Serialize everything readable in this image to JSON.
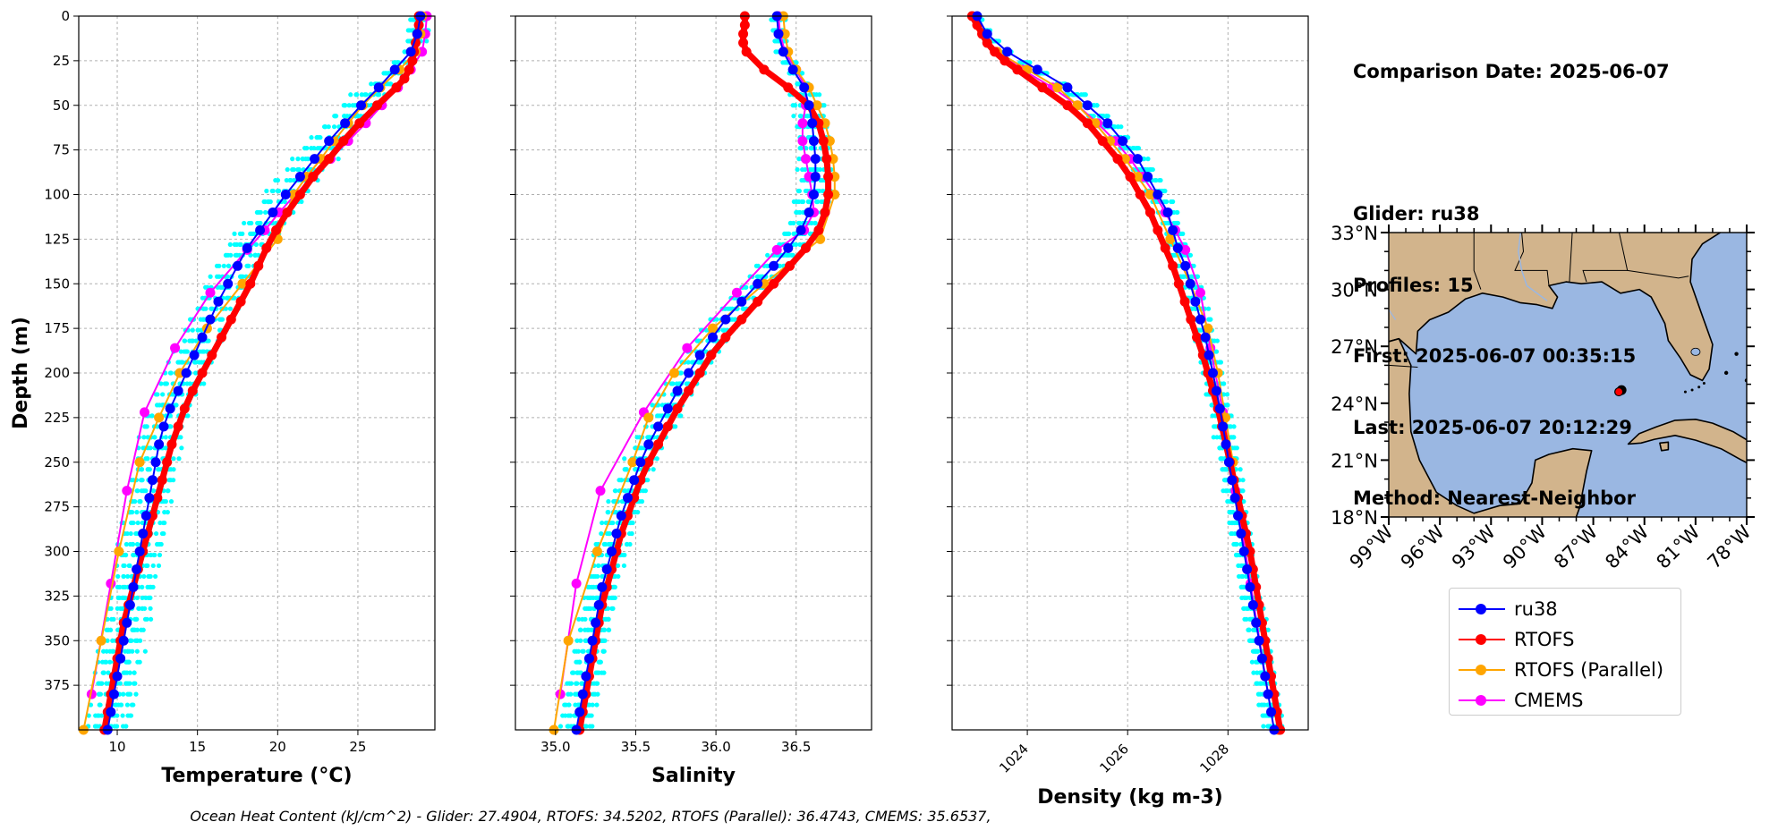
{
  "info": {
    "comparison_date": "Comparison Date: 2025-06-07",
    "glider": "Glider: ru38",
    "profiles": "Profiles: 15",
    "first": "First: 2025-06-07 00:35:15",
    "last": "Last: 2025-06-07 20:12:29",
    "method": "Method: Nearest-Neighbor"
  },
  "footer": "Ocean Heat Content (kJ/cm^2) - Glider: 27.4904,  RTOFS: 34.5202,  RTOFS (Parallel): 36.4743,  CMEMS: 35.6537,",
  "colors": {
    "ru38": "#0000ff",
    "RTOFS": "#ff0000",
    "RTOFS (Parallel)": "#ffa500",
    "CMEMS": "#ff00ff",
    "glider_profiles": "#00ffff",
    "grid": "#b0b0b0",
    "land": "#d2b48c",
    "ocean": "#9ab7e2"
  },
  "legend": [
    {
      "label": "ru38",
      "color": "#0000ff"
    },
    {
      "label": "RTOFS",
      "color": "#ff0000"
    },
    {
      "label": "RTOFS (Parallel)",
      "color": "#ffa500"
    },
    {
      "label": "CMEMS",
      "color": "#ff00ff"
    }
  ],
  "chart_data": [
    {
      "type": "line",
      "xlabel": "Temperature (°C)",
      "ylabel": "Depth (m)",
      "xlim": [
        7.6,
        29.8
      ],
      "ylim": [
        400,
        0
      ],
      "xticks": [
        10,
        15,
        20,
        25
      ],
      "yticks": [
        0,
        25,
        50,
        75,
        100,
        125,
        150,
        175,
        200,
        225,
        250,
        275,
        300,
        325,
        350,
        375
      ],
      "grid": true,
      "series": [
        {
          "name": "ru38",
          "color": "#0000ff",
          "depth": [
            0,
            10,
            20,
            30,
            40,
            50,
            60,
            70,
            80,
            90,
            100,
            110,
            120,
            130,
            140,
            150,
            160,
            170,
            180,
            190,
            200,
            210,
            220,
            230,
            240,
            250,
            260,
            270,
            280,
            290,
            300,
            310,
            320,
            330,
            340,
            350,
            360,
            370,
            380,
            390,
            400
          ],
          "values": [
            28.9,
            28.7,
            28.3,
            27.3,
            26.3,
            25.2,
            24.2,
            23.2,
            22.3,
            21.4,
            20.5,
            19.7,
            18.9,
            18.1,
            17.5,
            16.9,
            16.3,
            15.8,
            15.3,
            14.8,
            14.3,
            13.8,
            13.3,
            12.9,
            12.6,
            12.4,
            12.2,
            12.0,
            11.8,
            11.6,
            11.4,
            11.2,
            11.0,
            10.8,
            10.6,
            10.4,
            10.2,
            10.0,
            9.8,
            9.6,
            9.4
          ]
        },
        {
          "name": "RTOFS",
          "color": "#ff0000",
          "depth": [
            0,
            5,
            10,
            15,
            20,
            25,
            30,
            35,
            40,
            50,
            60,
            70,
            80,
            90,
            100,
            110,
            120,
            130,
            140,
            150,
            160,
            170,
            180,
            190,
            200,
            210,
            220,
            230,
            240,
            250,
            260,
            270,
            280,
            290,
            300,
            310,
            320,
            330,
            340,
            350,
            360,
            370,
            380,
            390,
            400
          ],
          "values": [
            28.8,
            28.8,
            28.7,
            28.6,
            28.5,
            28.4,
            28.2,
            27.9,
            27.4,
            26.2,
            25.1,
            24.1,
            23.2,
            22.2,
            21.4,
            20.6,
            19.9,
            19.3,
            18.8,
            18.3,
            17.7,
            17.1,
            16.5,
            15.9,
            15.3,
            14.7,
            14.2,
            13.8,
            13.4,
            13.1,
            12.8,
            12.5,
            12.2,
            11.9,
            11.6,
            11.3,
            11.0,
            10.7,
            10.4,
            10.2,
            10.0,
            9.8,
            9.6,
            9.4,
            9.2
          ]
        },
        {
          "name": "RTOFS (Parallel)",
          "color": "#ffa500",
          "depth": [
            0,
            10,
            20,
            30,
            40,
            50,
            60,
            70,
            80,
            90,
            100,
            125,
            150,
            175,
            200,
            225,
            250,
            300,
            350,
            400
          ],
          "values": [
            29.0,
            28.9,
            28.6,
            27.6,
            26.4,
            25.3,
            24.4,
            23.5,
            22.7,
            21.8,
            21.0,
            20.0,
            17.8,
            15.6,
            13.9,
            12.6,
            11.4,
            10.1,
            9.0,
            7.9
          ]
        },
        {
          "name": "CMEMS",
          "color": "#ff00ff",
          "depth": [
            0,
            10,
            20,
            30,
            40,
            50,
            60,
            70,
            80,
            90,
            100,
            110,
            120,
            131,
            155,
            186,
            222,
            266,
            318,
            380
          ],
          "values": [
            29.3,
            29.2,
            29.0,
            28.3,
            27.5,
            26.5,
            25.5,
            24.4,
            23.3,
            22.2,
            21.1,
            20.1,
            19.2,
            18.1,
            15.8,
            13.6,
            11.7,
            10.6,
            9.6,
            8.4
          ]
        }
      ]
    },
    {
      "type": "line",
      "xlabel": "Salinity",
      "xlim": [
        34.75,
        36.97
      ],
      "ylim": [
        400,
        0
      ],
      "xticks": [
        35.0,
        35.5,
        36.0,
        36.5
      ],
      "grid": true,
      "series": [
        {
          "name": "ru38",
          "color": "#0000ff",
          "depth": [
            0,
            10,
            20,
            30,
            40,
            50,
            60,
            70,
            80,
            90,
            100,
            110,
            120,
            130,
            140,
            150,
            160,
            170,
            180,
            190,
            200,
            210,
            220,
            230,
            240,
            250,
            260,
            270,
            280,
            290,
            300,
            310,
            320,
            330,
            340,
            350,
            360,
            370,
            380,
            390,
            400
          ],
          "values": [
            36.38,
            36.39,
            36.42,
            36.48,
            36.55,
            36.58,
            36.6,
            36.61,
            36.62,
            36.62,
            36.61,
            36.58,
            36.53,
            36.45,
            36.36,
            36.26,
            36.16,
            36.06,
            35.98,
            35.9,
            35.83,
            35.76,
            35.7,
            35.64,
            35.58,
            35.53,
            35.49,
            35.45,
            35.41,
            35.38,
            35.35,
            35.32,
            35.29,
            35.27,
            35.25,
            35.23,
            35.21,
            35.19,
            35.17,
            35.15,
            35.13
          ]
        },
        {
          "name": "RTOFS",
          "color": "#ff0000",
          "depth": [
            0,
            5,
            10,
            15,
            20,
            30,
            40,
            50,
            60,
            70,
            80,
            90,
            100,
            110,
            120,
            130,
            140,
            150,
            160,
            170,
            180,
            190,
            200,
            210,
            220,
            230,
            240,
            250,
            260,
            270,
            280,
            290,
            300,
            310,
            320,
            330,
            340,
            350,
            360,
            370,
            380,
            390,
            400
          ],
          "values": [
            36.18,
            36.18,
            36.17,
            36.17,
            36.19,
            36.3,
            36.45,
            36.58,
            36.64,
            36.67,
            36.69,
            36.7,
            36.7,
            36.68,
            36.64,
            36.56,
            36.46,
            36.36,
            36.26,
            36.16,
            36.06,
            35.97,
            35.9,
            35.83,
            35.76,
            35.7,
            35.64,
            35.58,
            35.53,
            35.49,
            35.45,
            35.41,
            35.38,
            35.35,
            35.32,
            35.29,
            35.27,
            35.25,
            35.23,
            35.21,
            35.19,
            35.17,
            35.15
          ]
        },
        {
          "name": "RTOFS (Parallel)",
          "color": "#ffa500",
          "depth": [
            0,
            10,
            20,
            30,
            40,
            50,
            60,
            70,
            80,
            90,
            100,
            125,
            150,
            175,
            200,
            225,
            250,
            300,
            350,
            400
          ],
          "values": [
            36.42,
            36.43,
            36.45,
            36.5,
            36.58,
            36.63,
            36.68,
            36.71,
            36.73,
            36.74,
            36.74,
            36.65,
            36.3,
            35.98,
            35.74,
            35.58,
            35.48,
            35.26,
            35.08,
            34.99
          ]
        },
        {
          "name": "CMEMS",
          "color": "#ff00ff",
          "depth": [
            0,
            10,
            20,
            30,
            40,
            50,
            60,
            70,
            80,
            90,
            100,
            110,
            120,
            131,
            155,
            186,
            222,
            266,
            318,
            380
          ],
          "values": [
            36.39,
            36.4,
            36.43,
            36.5,
            36.56,
            36.56,
            36.54,
            36.54,
            36.56,
            36.58,
            36.6,
            36.61,
            36.55,
            36.38,
            36.13,
            35.82,
            35.55,
            35.28,
            35.13,
            35.03
          ]
        }
      ]
    },
    {
      "type": "line",
      "xlabel": "Density (kg m-3)",
      "xlim": [
        1022.5,
        1029.6
      ],
      "ylim": [
        400,
        0
      ],
      "xticks": [
        1024,
        1026,
        1028
      ],
      "grid": true,
      "series": [
        {
          "name": "ru38",
          "color": "#0000ff",
          "depth": [
            0,
            10,
            20,
            30,
            40,
            50,
            60,
            70,
            80,
            90,
            100,
            110,
            120,
            130,
            140,
            150,
            160,
            170,
            180,
            190,
            200,
            210,
            220,
            230,
            240,
            250,
            260,
            270,
            280,
            290,
            300,
            310,
            320,
            330,
            340,
            350,
            360,
            370,
            380,
            390,
            400
          ],
          "values": [
            1023.0,
            1023.2,
            1023.6,
            1024.2,
            1024.8,
            1025.2,
            1025.6,
            1025.9,
            1026.2,
            1026.4,
            1026.6,
            1026.8,
            1026.9,
            1027.0,
            1027.15,
            1027.25,
            1027.35,
            1027.45,
            1027.55,
            1027.62,
            1027.7,
            1027.77,
            1027.84,
            1027.9,
            1027.96,
            1028.02,
            1028.08,
            1028.14,
            1028.2,
            1028.26,
            1028.32,
            1028.38,
            1028.44,
            1028.5,
            1028.56,
            1028.62,
            1028.68,
            1028.74,
            1028.8,
            1028.86,
            1028.92
          ]
        },
        {
          "name": "RTOFS",
          "color": "#ff0000",
          "depth": [
            0,
            5,
            10,
            15,
            20,
            25,
            30,
            40,
            50,
            60,
            70,
            80,
            90,
            100,
            110,
            120,
            130,
            140,
            150,
            160,
            170,
            180,
            190,
            200,
            210,
            220,
            230,
            240,
            250,
            260,
            270,
            280,
            290,
            300,
            310,
            320,
            330,
            340,
            350,
            360,
            370,
            380,
            390,
            400
          ],
          "values": [
            1022.9,
            1023.0,
            1023.1,
            1023.2,
            1023.35,
            1023.55,
            1023.8,
            1024.3,
            1024.8,
            1025.2,
            1025.5,
            1025.8,
            1026.05,
            1026.25,
            1026.45,
            1026.6,
            1026.75,
            1026.9,
            1027.02,
            1027.14,
            1027.26,
            1027.38,
            1027.5,
            1027.6,
            1027.7,
            1027.8,
            1027.88,
            1027.96,
            1028.04,
            1028.12,
            1028.2,
            1028.28,
            1028.36,
            1028.44,
            1028.5,
            1028.56,
            1028.62,
            1028.68,
            1028.74,
            1028.8,
            1028.86,
            1028.92,
            1028.98,
            1029.04
          ]
        },
        {
          "name": "RTOFS (Parallel)",
          "color": "#ffa500",
          "depth": [
            0,
            10,
            20,
            30,
            40,
            50,
            60,
            70,
            80,
            90,
            100,
            125,
            150,
            175,
            200,
            225,
            250,
            300,
            350,
            400
          ],
          "values": [
            1022.9,
            1023.1,
            1023.4,
            1024.0,
            1024.6,
            1025.0,
            1025.35,
            1025.65,
            1025.95,
            1026.2,
            1026.45,
            1026.85,
            1027.25,
            1027.6,
            1027.8,
            1027.95,
            1028.1,
            1028.4,
            1028.7,
            1029.0
          ]
        },
        {
          "name": "CMEMS",
          "color": "#ff00ff",
          "depth": [
            0,
            10,
            20,
            30,
            40,
            50,
            60,
            70,
            80,
            90,
            100,
            110,
            120,
            131,
            155,
            186,
            222,
            266,
            318,
            380
          ],
          "values": [
            1022.9,
            1023.1,
            1023.4,
            1023.9,
            1024.5,
            1025.0,
            1025.4,
            1025.75,
            1026.05,
            1026.3,
            1026.55,
            1026.75,
            1026.95,
            1027.15,
            1027.45,
            1027.65,
            1027.9,
            1028.15,
            1028.45,
            1028.8
          ]
        }
      ]
    },
    {
      "type": "map",
      "lon_ticks": [
        "99°W",
        "96°W",
        "93°W",
        "90°W",
        "87°W",
        "84°W",
        "81°W",
        "78°W"
      ],
      "lat_ticks": [
        "18°N",
        "21°N",
        "24°N",
        "27°N",
        "30°N",
        "33°N"
      ],
      "lon_range": [
        -99,
        -78
      ],
      "lat_range": [
        18,
        33
      ],
      "glider_position": {
        "lon": -85.5,
        "lat": 24.6
      },
      "land_color": "#d2b48c",
      "ocean_color": "#9ab7e2"
    }
  ]
}
